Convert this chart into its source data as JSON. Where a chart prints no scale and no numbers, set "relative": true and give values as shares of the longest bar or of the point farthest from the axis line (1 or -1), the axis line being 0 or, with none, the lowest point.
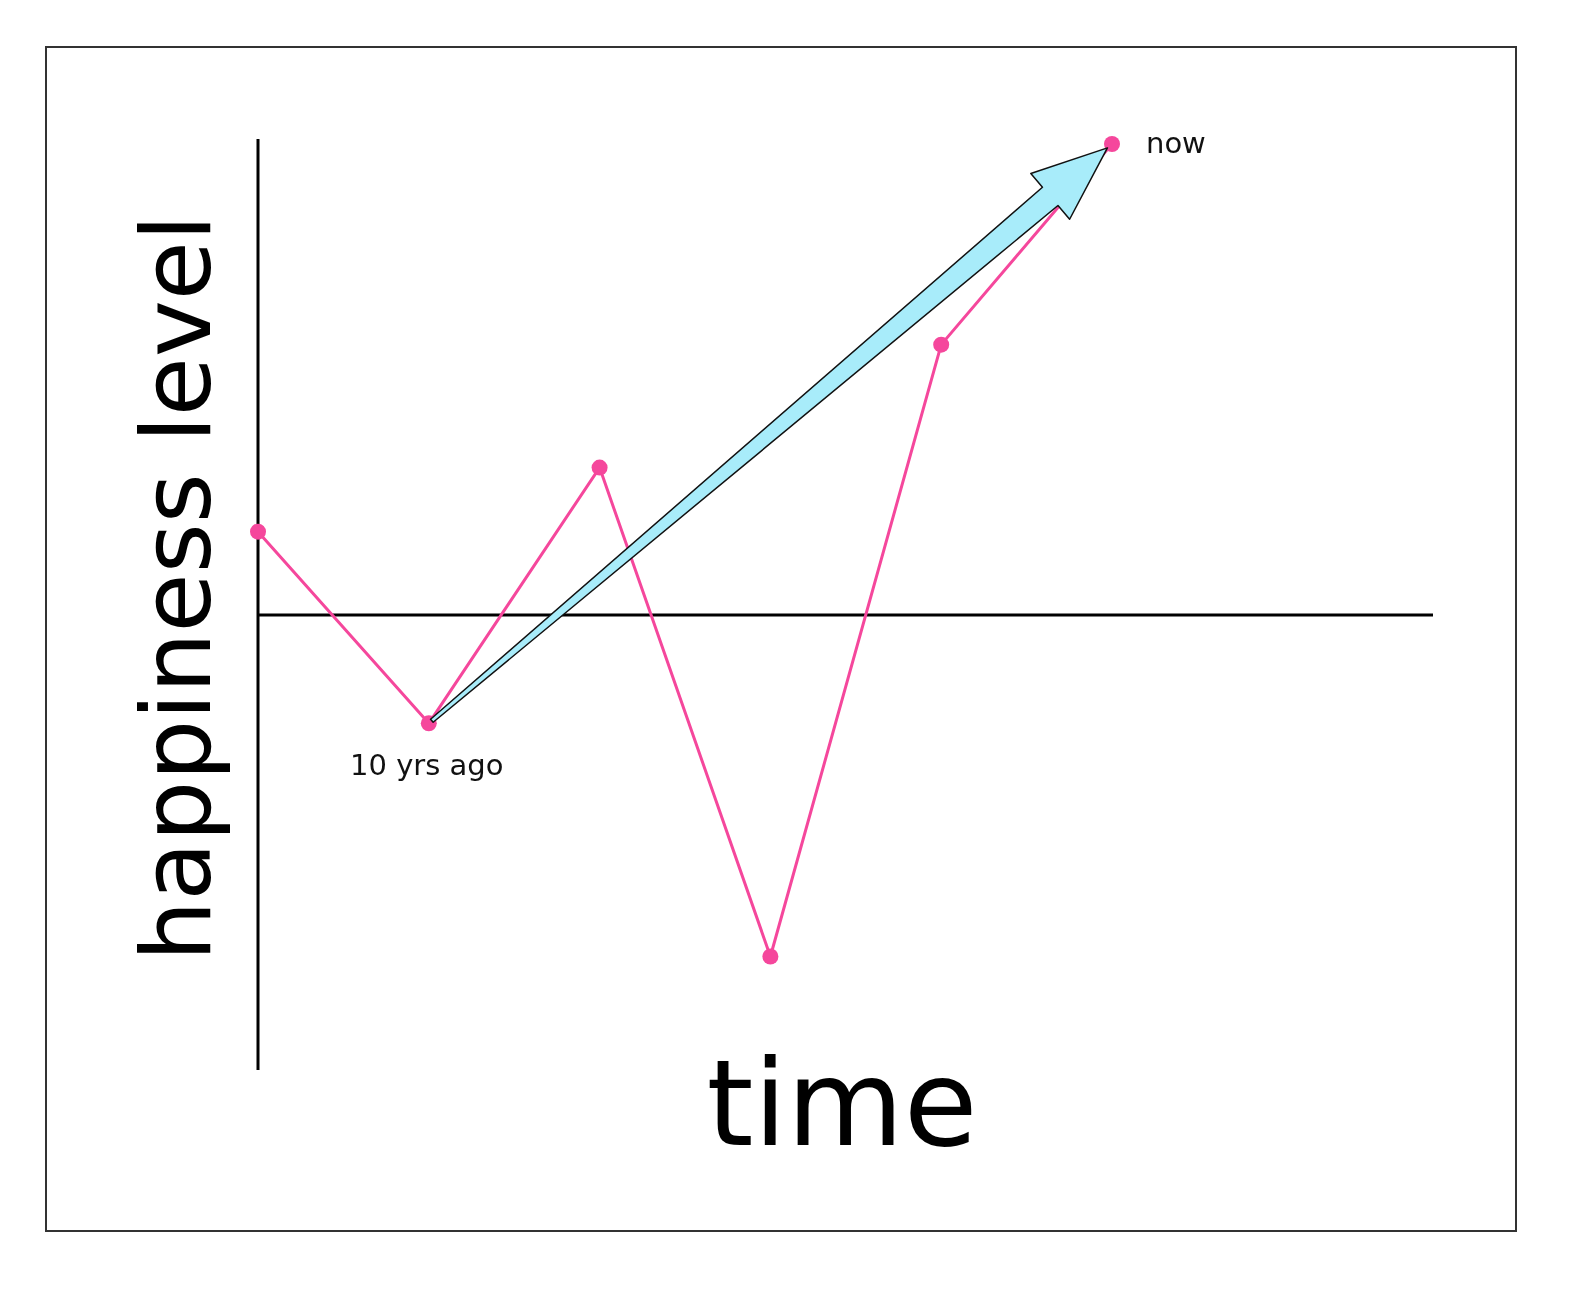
{
  "chart_data": {
    "type": "line",
    "relative": true,
    "xlabel": "time",
    "ylabel": "happiness level",
    "categories": [
      null,
      null,
      null,
      null,
      null,
      null
    ],
    "values": [
      0.177,
      -0.23,
      0.313,
      -0.725,
      0.574,
      1
    ],
    "color": "#f5479c",
    "marker": "circle",
    "annotations": [
      {
        "text": "10 yrs ago",
        "y": -0.23
      },
      "now"
    ]
  }
}
